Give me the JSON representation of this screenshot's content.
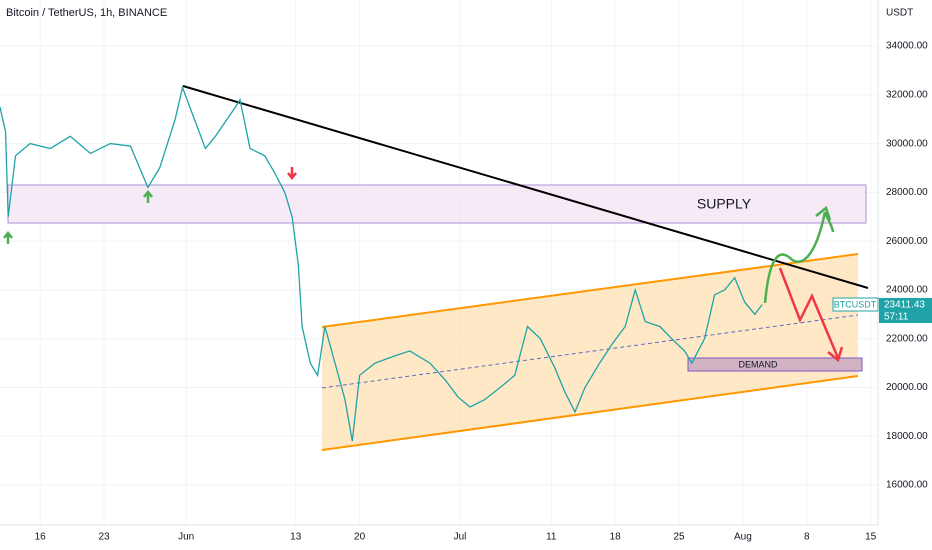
{
  "chart_data": {
    "type": "line",
    "title": "Bitcoin / TetherUS, 1h, BINANCE",
    "y_axis_label": "USDT",
    "annotations": {
      "supply": "SUPPLY",
      "demand": "DEMAND"
    },
    "price_label": {
      "symbol": "BTCUSDT",
      "price": "23411.43",
      "countdown": "57:11"
    },
    "grid": true,
    "xlim": [
      -4.4,
      91.8
    ],
    "ylim": [
      14360,
      35890
    ],
    "xticks": [
      {
        "value": 0,
        "label": "16"
      },
      {
        "value": 7,
        "label": "23"
      },
      {
        "value": 16,
        "label": "Jun"
      },
      {
        "value": 28,
        "label": "13"
      },
      {
        "value": 35,
        "label": "20"
      },
      {
        "value": 46,
        "label": "Jul"
      },
      {
        "value": 56,
        "label": "11"
      },
      {
        "value": 63,
        "label": "18"
      },
      {
        "value": 70,
        "label": "25"
      },
      {
        "value": 77,
        "label": "Aug"
      },
      {
        "value": 84,
        "label": "8"
      },
      {
        "value": 91,
        "label": "15"
      }
    ],
    "yticks": [
      {
        "value": 16000,
        "label": "16000.00"
      },
      {
        "value": 18000,
        "label": "18000.00"
      },
      {
        "value": 20000,
        "label": "20000.00"
      },
      {
        "value": 22000,
        "label": "22000.00"
      },
      {
        "value": 24000,
        "label": "24000.00"
      },
      {
        "value": 26000,
        "label": "26000.00"
      },
      {
        "value": 28000,
        "label": "28000.00"
      },
      {
        "value": 30000,
        "label": "30000.00"
      },
      {
        "value": 32000,
        "label": "32000.00"
      },
      {
        "value": 34000,
        "label": "34000.00"
      }
    ],
    "x": [
      -4.4,
      -3.8,
      -3.5,
      -2.7,
      -1.1,
      1.1,
      3.3,
      5.5,
      7.7,
      9.9,
      11.8,
      13.1,
      14.8,
      15.6,
      16.4,
      18.1,
      19.2,
      21.4,
      21.9,
      23.0,
      24.6,
      25.7,
      26.8,
      27.6,
      28.3,
      28.7,
      29.6,
      30.4,
      31.2,
      32.3,
      33.4,
      34.2,
      35.0,
      36.7,
      38.9,
      40.5,
      42.7,
      44.4,
      45.8,
      47.1,
      48.7,
      50.4,
      52.0,
      53.4,
      54.8,
      56.4,
      57.5,
      58.6,
      59.7,
      61.3,
      62.7,
      64.1,
      65.2,
      66.3,
      67.9,
      69.2,
      70.6,
      71.4,
      72.8,
      73.9,
      75.0,
      76.1,
      77.2,
      78.3,
      79.1
    ],
    "series": [
      {
        "name": "BTCUSDT",
        "color": "#1fa3a8",
        "values": [
          31500,
          30500,
          27000,
          29500,
          30000,
          29800,
          30300,
          29600,
          30000,
          29900,
          28200,
          29000,
          31000,
          32300,
          31500,
          29800,
          30300,
          31500,
          31800,
          29800,
          29500,
          28800,
          28000,
          27000,
          25000,
          22500,
          21000,
          20500,
          22500,
          21000,
          19500,
          17800,
          20500,
          21000,
          21300,
          21500,
          21000,
          20300,
          19600,
          19200,
          19500,
          20000,
          20500,
          22500,
          22000,
          20800,
          19800,
          19000,
          20000,
          21000,
          21800,
          22500,
          24000,
          22700,
          22500,
          22000,
          21500,
          21000,
          22000,
          23800,
          24000,
          24500,
          23500,
          23000,
          23400
        ]
      }
    ]
  }
}
